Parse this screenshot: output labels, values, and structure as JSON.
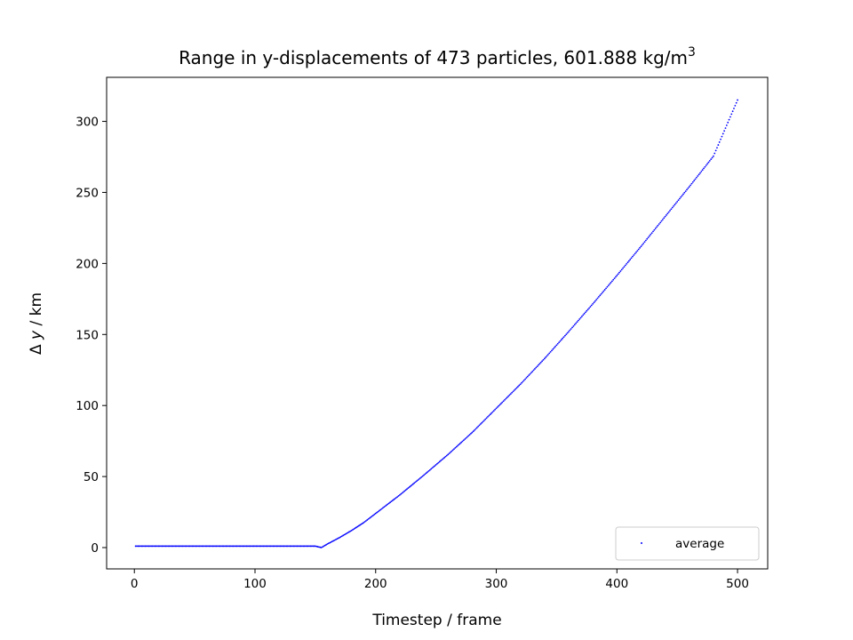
{
  "chart_data": {
    "type": "scatter",
    "title": "Range in y-displacements of 473 particles, 601.888 kg/m",
    "title_superscript": "3",
    "xlabel": "Timestep / frame",
    "ylabel_prefix": "Δ ",
    "ylabel_var": "y",
    "ylabel_suffix": " / km",
    "xlim": [
      -23,
      525
    ],
    "ylim": [
      -15,
      331
    ],
    "xticks": [
      0,
      100,
      200,
      300,
      400,
      500
    ],
    "yticks": [
      0,
      50,
      100,
      150,
      200,
      250,
      300
    ],
    "grid": false,
    "legend": {
      "position": "lower-right"
    },
    "series": [
      {
        "name": "average",
        "color": "#0000ff",
        "marker": "point",
        "x_range": [
          1,
          500
        ],
        "points": [
          [
            1,
            1.0
          ],
          [
            150,
            1.0
          ],
          [
            155,
            0.0
          ],
          [
            160,
            2.5
          ],
          [
            170,
            7.0
          ],
          [
            180,
            12.0
          ],
          [
            190,
            17.5
          ],
          [
            200,
            24.0
          ],
          [
            220,
            37.0
          ],
          [
            240,
            51.0
          ],
          [
            260,
            65.5
          ],
          [
            280,
            81.0
          ],
          [
            300,
            98.0
          ],
          [
            320,
            115.0
          ],
          [
            340,
            133.0
          ],
          [
            360,
            152.0
          ],
          [
            380,
            171.5
          ],
          [
            400,
            191.5
          ],
          [
            420,
            212.0
          ],
          [
            440,
            233.0
          ],
          [
            460,
            254.0
          ],
          [
            480,
            275.5
          ],
          [
            500,
            315.0
          ]
        ]
      }
    ]
  }
}
